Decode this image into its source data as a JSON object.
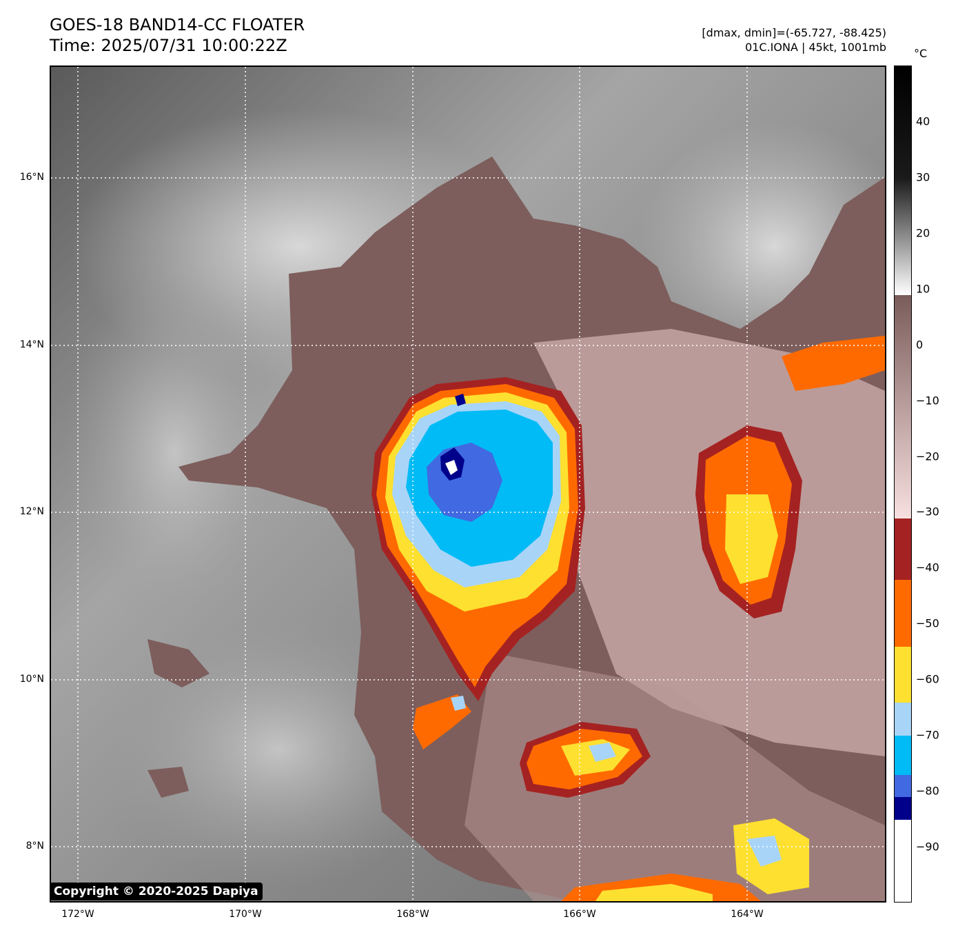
{
  "title": {
    "line1": "GOES-18 BAND14-CC FLOATER",
    "line2": "Time: 2025/07/31 10:00:22Z"
  },
  "info": {
    "range": "[dmax, dmin]=(-65.727, -88.425)",
    "storm": "01C.IONA | 45kt, 1001mb"
  },
  "copyright": "Copyright © 2020-2025 Dapiya",
  "map": {
    "lat_labels": [
      "16°N",
      "14°N",
      "12°N",
      "10°N",
      "8°N"
    ],
    "lon_labels": [
      "172°W",
      "170°W",
      "168°W",
      "166°W",
      "164°W"
    ],
    "grid": "dotted-white"
  },
  "colorbar": {
    "unit": "°C",
    "range": [
      -100,
      50
    ],
    "ticks": [
      "40",
      "30",
      "20",
      "10",
      "0",
      "−10",
      "−20",
      "−30",
      "−40",
      "−50",
      "−60",
      "−70",
      "−80",
      "−90"
    ],
    "tick_values": [
      40,
      30,
      20,
      10,
      0,
      -10,
      -20,
      -30,
      -40,
      -50,
      -60,
      -70,
      -80,
      -90
    ],
    "bands": [
      {
        "from": 50,
        "to": 30,
        "color_top": "#000000",
        "color_bottom": "#1a1a1a"
      },
      {
        "from": 30,
        "to": 9,
        "color_top": "#1a1a1a",
        "color_bottom": "#ffffff"
      },
      {
        "from": 9,
        "to": -31,
        "color_top": "#7a5c5a",
        "color_bottom": "#f8e0e0"
      },
      {
        "from": -31,
        "to": -42,
        "color_top": "#a52222",
        "color_bottom": "#a52222"
      },
      {
        "from": -42,
        "to": -54,
        "color_top": "#ff6a00",
        "color_bottom": "#ff6a00"
      },
      {
        "from": -54,
        "to": -64,
        "color_top": "#fde030",
        "color_bottom": "#fde030"
      },
      {
        "from": -64,
        "to": -70,
        "color_top": "#a8d4f8",
        "color_bottom": "#a8d4f8"
      },
      {
        "from": -70,
        "to": -77,
        "color_top": "#00bbf5",
        "color_bottom": "#00bbf5"
      },
      {
        "from": -77,
        "to": -81,
        "color_top": "#4169e1",
        "color_bottom": "#4169e1"
      },
      {
        "from": -81,
        "to": -85,
        "color_top": "#00008b",
        "color_bottom": "#00008b"
      },
      {
        "from": -85,
        "to": -100,
        "color_top": "#ffffff",
        "color_bottom": "#ffffff"
      }
    ]
  }
}
